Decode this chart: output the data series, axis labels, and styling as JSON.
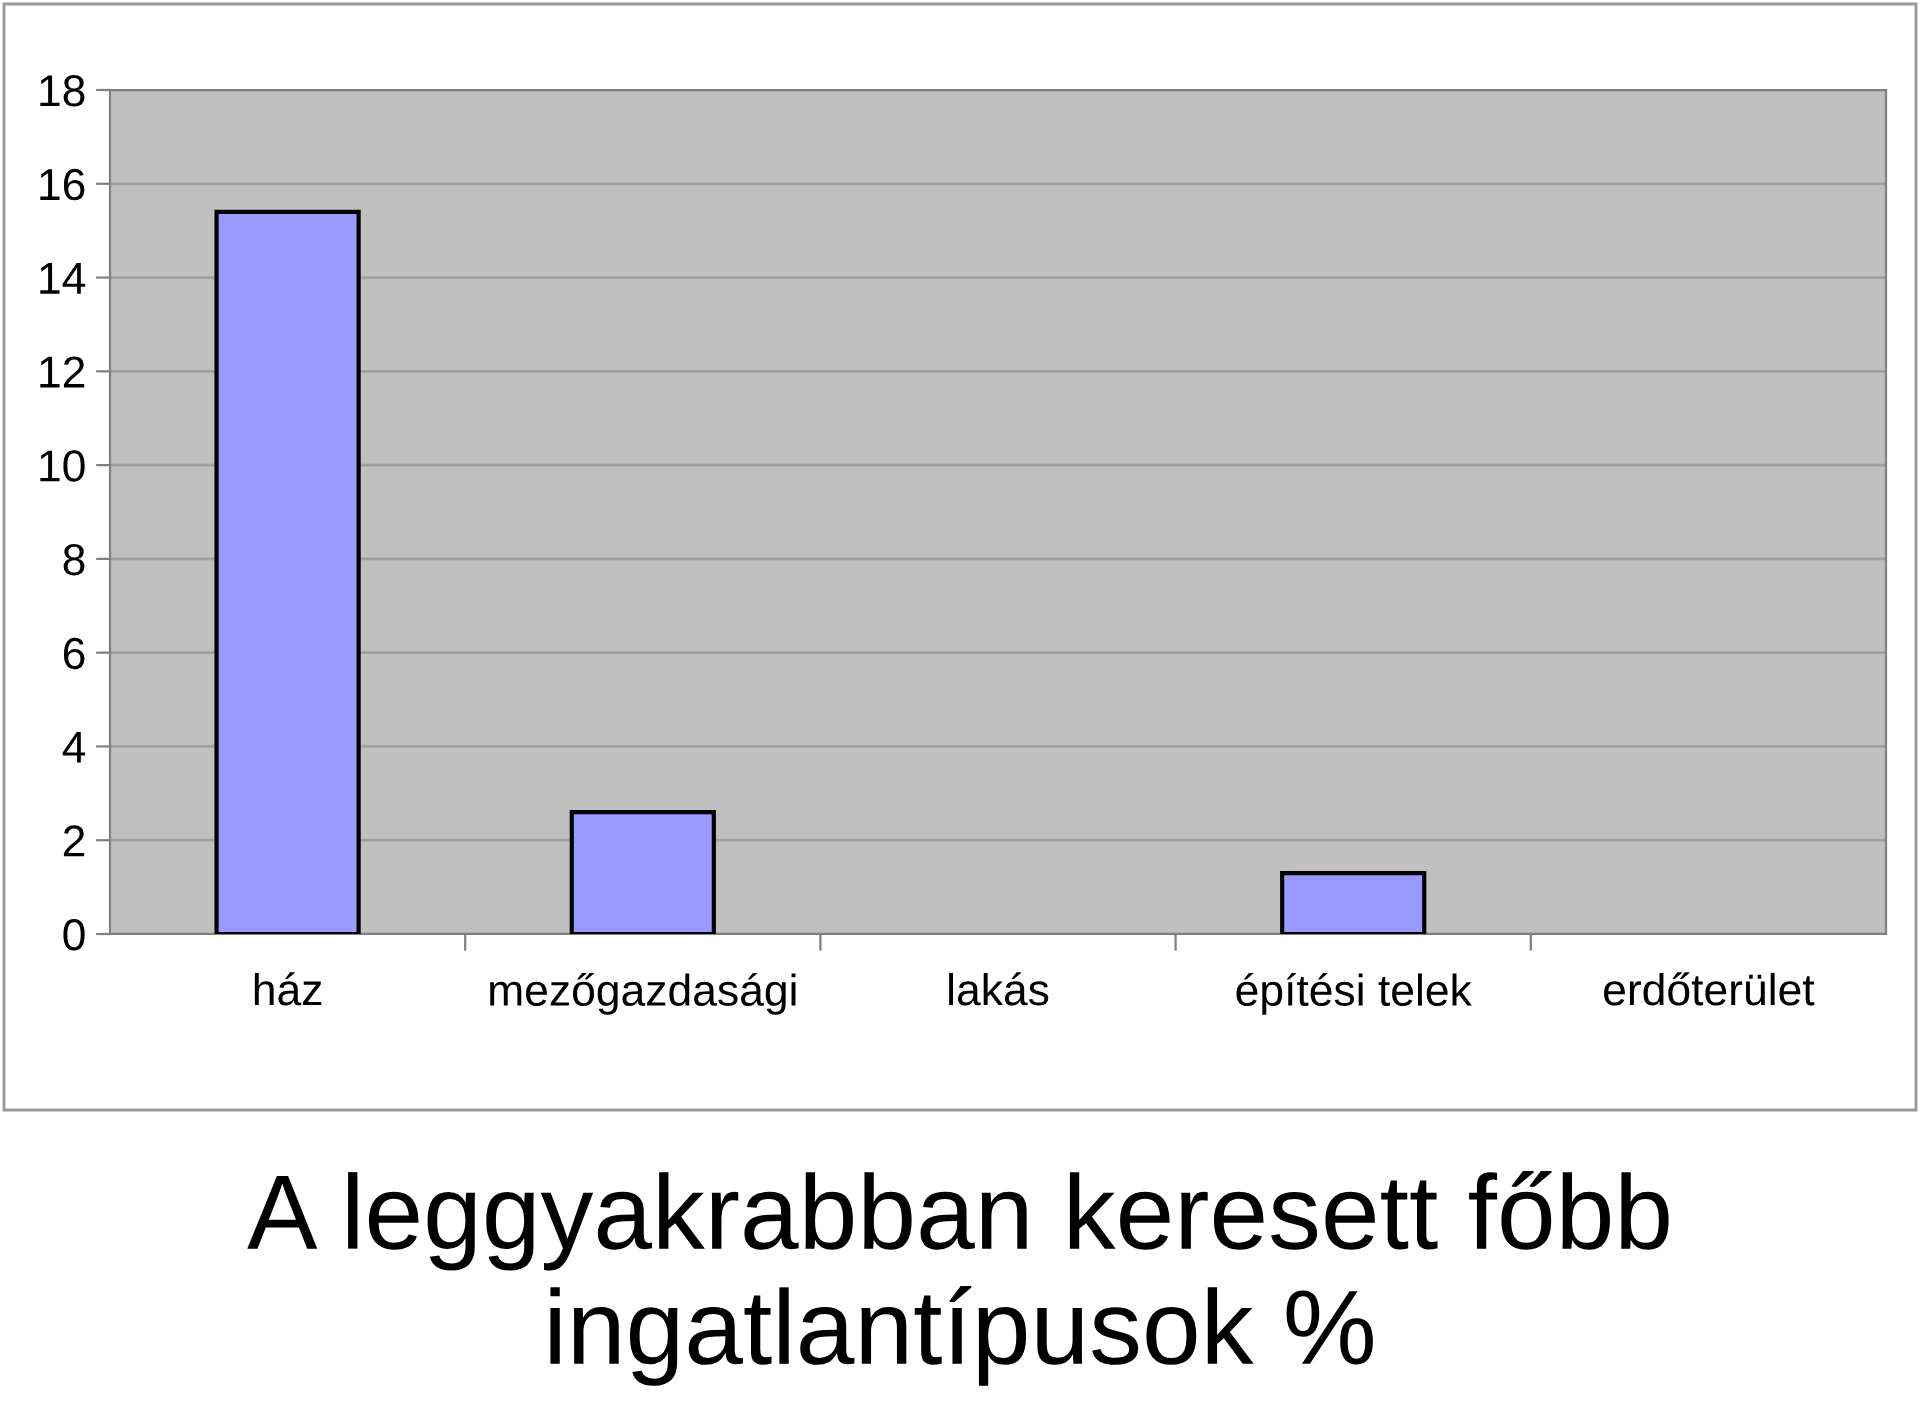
{
  "chart_data": {
    "type": "bar",
    "title": "A leggyakrabban keresett főbb ingatlantípusok %",
    "categories": [
      "ház",
      "mezőgazdasági",
      "lakás",
      "építési telek",
      "erdőterület"
    ],
    "values": [
      15.4,
      2.6,
      0,
      1.3,
      0
    ],
    "color": "#9999ff",
    "ylim": [
      0,
      18
    ],
    "yticks": [
      0,
      2,
      4,
      6,
      8,
      10,
      12,
      14,
      16,
      18
    ],
    "grid": "y"
  }
}
